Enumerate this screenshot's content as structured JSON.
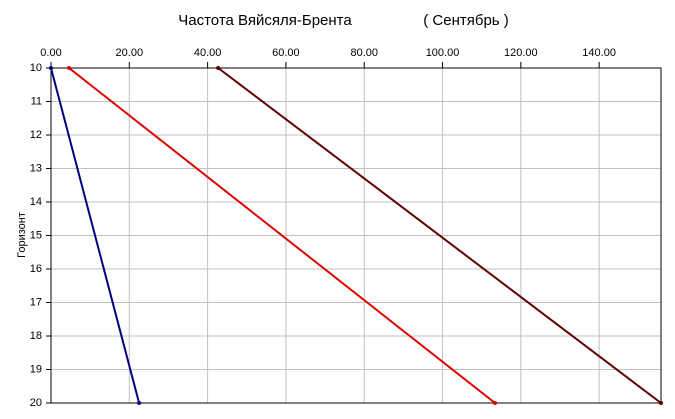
{
  "chart_data": {
    "type": "line",
    "title": "Частота Вяйсяля-Брента",
    "subtitle": "( Сентябрь )",
    "y_label": "Горизонт",
    "xlim": [
      0,
      155.8
    ],
    "ylim": [
      10,
      20
    ],
    "y_inverted": true,
    "x_axis_position": "top",
    "grid": true,
    "xticks": [
      {
        "value": 0,
        "label": "0.00"
      },
      {
        "value": 20,
        "label": "20.00"
      },
      {
        "value": 40,
        "label": "40.00"
      },
      {
        "value": 60,
        "label": "60.00"
      },
      {
        "value": 80,
        "label": "80.00"
      },
      {
        "value": 100,
        "label": "100.00"
      },
      {
        "value": 120,
        "label": "120.00"
      },
      {
        "value": 140,
        "label": "140.00"
      }
    ],
    "yticks": [
      10,
      11,
      12,
      13,
      14,
      15,
      16,
      17,
      18,
      19,
      20
    ],
    "series": [
      {
        "color": "#000080",
        "x": [
          0,
          22.5
        ],
        "values": [
          10,
          20
        ]
      },
      {
        "color": "#e00000",
        "x": [
          4.6,
          113.4
        ],
        "values": [
          10,
          20
        ]
      },
      {
        "color": "#600000",
        "x": [
          42.7,
          155.8
        ],
        "values": [
          10,
          20
        ]
      }
    ]
  }
}
